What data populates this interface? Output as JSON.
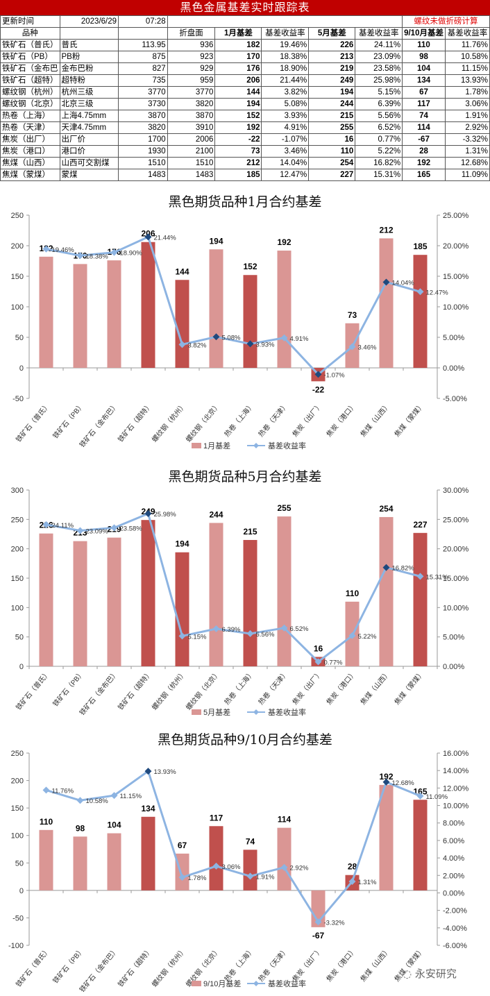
{
  "header": {
    "title": "黑色金属基差实时跟踪表",
    "update_label": "更新时间",
    "update_date": "2023/6/29",
    "update_time": "07:28",
    "note": "螺纹未做折磅计算"
  },
  "table": {
    "columns": [
      "品种",
      "",
      "",
      "折盘面",
      "1月基差",
      "基差收益率",
      "5月基差",
      "基差收益率",
      "9/10月基差",
      "基差收益率"
    ],
    "rows": [
      [
        "铁矿石（普氏）",
        "普氏",
        "113.95",
        "936",
        "182",
        "19.46%",
        "226",
        "24.11%",
        "110",
        "11.76%"
      ],
      [
        "铁矿石（PB）",
        "PB粉",
        "875",
        "923",
        "170",
        "18.38%",
        "213",
        "23.09%",
        "98",
        "10.58%"
      ],
      [
        "铁矿石（金布巴",
        "金布巴粉",
        "827",
        "929",
        "176",
        "18.90%",
        "219",
        "23.58%",
        "104",
        "11.15%"
      ],
      [
        "铁矿石（超特）",
        "超特粉",
        "735",
        "959",
        "206",
        "21.44%",
        "249",
        "25.98%",
        "134",
        "13.93%"
      ],
      [
        "螺纹钢（杭州）",
        "杭州三级",
        "3770",
        "3770",
        "144",
        "3.82%",
        "194",
        "5.15%",
        "67",
        "1.78%"
      ],
      [
        "螺纹钢（北京）",
        "北京三级",
        "3730",
        "3820",
        "194",
        "5.08%",
        "244",
        "6.39%",
        "117",
        "3.06%"
      ],
      [
        "热卷（上海）",
        "上海4.75mm",
        "3870",
        "3870",
        "152",
        "3.93%",
        "215",
        "5.56%",
        "74",
        "1.91%"
      ],
      [
        "热卷（天津）",
        "天津4.75mm",
        "3820",
        "3910",
        "192",
        "4.91%",
        "255",
        "6.52%",
        "114",
        "2.92%"
      ],
      [
        "焦炭（出厂）",
        "出厂价",
        "1700",
        "2006",
        "-22",
        "-1.07%",
        "16",
        "0.77%",
        "-67",
        "-3.32%"
      ],
      [
        "焦炭（港口）",
        "港口价",
        "1930",
        "2100",
        "73",
        "3.46%",
        "110",
        "5.22%",
        "28",
        "1.31%"
      ],
      [
        "焦煤（山西）",
        "山西可交割煤",
        "1510",
        "1510",
        "212",
        "14.04%",
        "254",
        "16.82%",
        "192",
        "12.68%"
      ],
      [
        "焦煤（蒙煤）",
        "蒙煤",
        "1483",
        "1483",
        "185",
        "12.47%",
        "227",
        "15.31%",
        "165",
        "11.09%"
      ]
    ]
  },
  "colors": {
    "title_bg": "#c00000",
    "bar_light": "#da9694",
    "bar_dark": "#c0504d",
    "line": "#8db4e2",
    "marker_dark": "#1f497d",
    "note_red": "#e00000"
  },
  "watermark": "永安研究",
  "chart_data": [
    {
      "type": "bar+line",
      "title": "黑色期货品种1月合约基差",
      "categories": [
        "铁矿石（普氏）",
        "铁矿石（PB）",
        "铁矿石（金布巴）",
        "铁矿石（超特）",
        "螺纹钢（杭州）",
        "螺纹钢（北京）",
        "热卷（上海）",
        "热卷（天津）",
        "焦炭（出厂）",
        "焦炭（港口）",
        "焦煤（山西）",
        "焦煤（蒙煤）"
      ],
      "series": [
        {
          "name": "1月基差",
          "type": "bar",
          "axis": "left",
          "values": [
            182,
            170,
            176,
            206,
            144,
            194,
            152,
            192,
            -22,
            73,
            212,
            185
          ]
        },
        {
          "name": "基差收益率",
          "type": "line",
          "axis": "right",
          "values": [
            19.46,
            18.38,
            18.9,
            21.44,
            3.82,
            5.08,
            3.93,
            4.91,
            -1.07,
            3.46,
            14.04,
            12.47
          ],
          "labels": [
            "19.46%",
            "18.38%",
            "18.90%",
            "21.44%",
            "3.82%",
            "5.08%",
            "3.93%",
            "4.91%",
            "-1.07%",
            "3.46%",
            "14.04%",
            "12.47%"
          ]
        }
      ],
      "dark_bars": [
        3,
        4,
        6,
        8,
        11
      ],
      "dark_markers": [
        3,
        5,
        6,
        8,
        10
      ],
      "ylim": [
        -50,
        250
      ],
      "yticks": [
        -50,
        0,
        50,
        100,
        150,
        200,
        250
      ],
      "y2lim": [
        -5,
        25
      ],
      "y2ticks": [
        "-5.00%",
        "0.00%",
        "5.00%",
        "10.00%",
        "15.00%",
        "20.00%",
        "25.00%"
      ],
      "legend": [
        "1月基差",
        "基差收益率"
      ],
      "legend_position": "bottom"
    },
    {
      "type": "bar+line",
      "title": "黑色期货品种5月合约基差",
      "categories": [
        "铁矿石（普氏）",
        "铁矿石（PB）",
        "铁矿石（金布巴）",
        "铁矿石（超特）",
        "螺纹钢（杭州）",
        "螺纹钢（北京）",
        "热卷（上海）",
        "热卷（天津）",
        "焦炭（出厂）",
        "焦炭（港口）",
        "焦煤（山西）",
        "焦煤（蒙煤）"
      ],
      "series": [
        {
          "name": "5月基差",
          "type": "bar",
          "axis": "left",
          "values": [
            226,
            213,
            219,
            249,
            194,
            244,
            215,
            255,
            16,
            110,
            254,
            227
          ]
        },
        {
          "name": "基差收益率",
          "type": "line",
          "axis": "right",
          "values": [
            24.11,
            23.09,
            23.58,
            25.98,
            5.15,
            6.39,
            5.56,
            6.52,
            0.77,
            5.22,
            16.82,
            15.31
          ],
          "labels": [
            "24.11%",
            "23.09%",
            "23.58%",
            "25.98%",
            "5.15%",
            "6.39%",
            "5.56%",
            "6.52%",
            "0.77%",
            "5.22%",
            "16.82%",
            "15.31%"
          ]
        }
      ],
      "dark_bars": [
        3,
        4,
        6,
        8,
        11
      ],
      "dark_markers": [
        3,
        10
      ],
      "ylim": [
        0,
        300
      ],
      "yticks": [
        0,
        50,
        100,
        150,
        200,
        250,
        300
      ],
      "y2lim": [
        0,
        30
      ],
      "y2ticks": [
        "0.00%",
        "5.00%",
        "10.00%",
        "15.00%",
        "20.00%",
        "25.00%",
        "30.00%"
      ],
      "legend": [
        "5月基差",
        "基差收益率"
      ],
      "legend_position": "bottom"
    },
    {
      "type": "bar+line",
      "title": "黑色期货品种9/10月合约基差",
      "categories": [
        "铁矿石（普氏）",
        "铁矿石（PB）",
        "铁矿石（金布巴）",
        "铁矿石（超特）",
        "螺纹钢（杭州）",
        "螺纹钢（北京）",
        "热卷（上海）",
        "热卷（天津）",
        "焦炭（出厂）",
        "焦炭（港口）",
        "焦煤（山西）",
        "焦煤（蒙煤）"
      ],
      "series": [
        {
          "name": "9/10月基差",
          "type": "bar",
          "axis": "left",
          "values": [
            110,
            98,
            104,
            134,
            67,
            117,
            74,
            114,
            -67,
            28,
            192,
            165
          ]
        },
        {
          "name": "基差收益率",
          "type": "line",
          "axis": "right",
          "values": [
            11.76,
            10.58,
            11.15,
            13.93,
            1.78,
            3.06,
            1.91,
            2.92,
            -3.32,
            1.31,
            12.68,
            11.09
          ],
          "labels": [
            "11.76%",
            "10.58%",
            "11.15%",
            "13.93%",
            "1.78%",
            "3.06%",
            "1.91%",
            "2.92%",
            "-3.32%",
            "1.31%",
            "12.68%",
            "11.09%"
          ]
        }
      ],
      "dark_bars": [
        3,
        5,
        6,
        9,
        11
      ],
      "dark_markers": [
        3,
        10
      ],
      "ylim": [
        -100,
        250
      ],
      "yticks": [
        -100,
        -50,
        0,
        50,
        100,
        150,
        200,
        250
      ],
      "y2lim": [
        -6,
        16
      ],
      "y2ticks": [
        "-6.00%",
        "-4.00%",
        "-2.00%",
        "0.00%",
        "2.00%",
        "4.00%",
        "6.00%",
        "8.00%",
        "10.00%",
        "12.00%",
        "14.00%",
        "16.00%"
      ],
      "legend": [
        "9/10月基差",
        "基差收益率"
      ],
      "legend_position": "bottom"
    }
  ]
}
